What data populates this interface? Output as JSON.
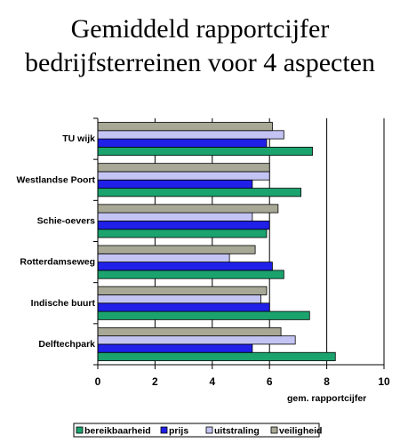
{
  "chart_data": {
    "type": "bar",
    "orientation": "horizontal",
    "title": [
      "Gemiddeld rapportcijfer",
      "bedrijfsterreinen voor 4 aspecten"
    ],
    "xlabel": "gem. rapportcijfer",
    "ylabel": "",
    "xlim": [
      0,
      10
    ],
    "xticks": [
      "0",
      "2",
      "4",
      "6",
      "8",
      "10"
    ],
    "grid": "vertical",
    "legend_position": "bottom",
    "categories": [
      "TU wijk",
      "Westlandse Poort",
      "Schie-oevers",
      "Rotterdamseweg",
      "Indische buurt",
      "Delftechpark"
    ],
    "series": [
      {
        "name": "bereikbaarheid",
        "color": "#1ba36e",
        "values": [
          7.5,
          7.1,
          5.9,
          6.5,
          7.4,
          8.3
        ]
      },
      {
        "name": "prijs",
        "color": "#2020e8",
        "values": [
          5.9,
          5.4,
          6.0,
          6.1,
          6.0,
          5.4
        ]
      },
      {
        "name": "uitstraling",
        "color": "#c4c4f4",
        "values": [
          6.5,
          6.0,
          5.4,
          4.6,
          5.7,
          6.9
        ]
      },
      {
        "name": "veiligheid",
        "color": "#a8a896",
        "values": [
          6.1,
          6.0,
          6.3,
          5.5,
          5.9,
          6.4
        ]
      }
    ]
  }
}
